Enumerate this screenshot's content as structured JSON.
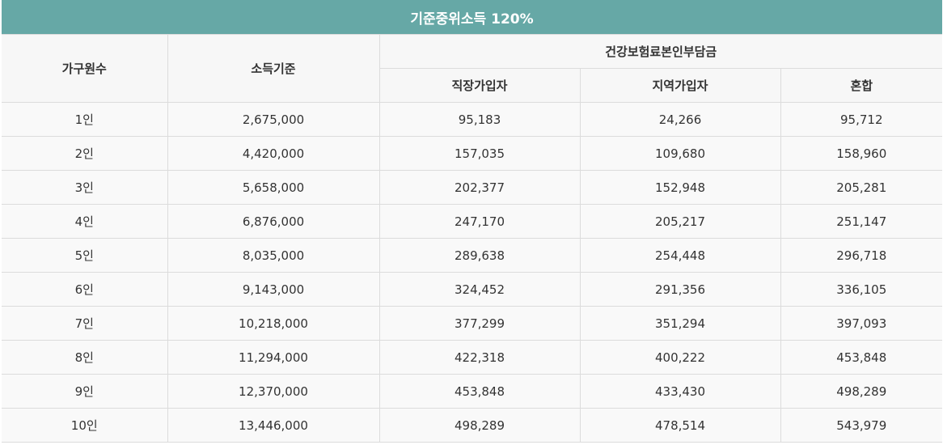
{
  "title": "기준중위소득 120%",
  "headers": {
    "household": "가구원수",
    "income": "소득기준",
    "premium_group": "건강보험료본인부담금",
    "employee": "직장가입자",
    "regional": "지역가입자",
    "mixed": "혼합"
  },
  "rows": [
    {
      "household": "1인",
      "income": "2,675,000",
      "employee": "95,183",
      "regional": "24,266",
      "mixed": "95,712"
    },
    {
      "household": "2인",
      "income": "4,420,000",
      "employee": "157,035",
      "regional": "109,680",
      "mixed": "158,960"
    },
    {
      "household": "3인",
      "income": "5,658,000",
      "employee": "202,377",
      "regional": "152,948",
      "mixed": "205,281"
    },
    {
      "household": "4인",
      "income": "6,876,000",
      "employee": "247,170",
      "regional": "205,217",
      "mixed": "251,147"
    },
    {
      "household": "5인",
      "income": "8,035,000",
      "employee": "289,638",
      "regional": "254,448",
      "mixed": "296,718"
    },
    {
      "household": "6인",
      "income": "9,143,000",
      "employee": "324,452",
      "regional": "291,356",
      "mixed": "336,105"
    },
    {
      "household": "7인",
      "income": "10,218,000",
      "employee": "377,299",
      "regional": "351,294",
      "mixed": "397,093"
    },
    {
      "household": "8인",
      "income": "11,294,000",
      "employee": "422,318",
      "regional": "400,222",
      "mixed": "453,848"
    },
    {
      "household": "9인",
      "income": "12,370,000",
      "employee": "453,848",
      "regional": "433,430",
      "mixed": "498,289"
    },
    {
      "household": "10인",
      "income": "13,446,000",
      "employee": "498,289",
      "regional": "478,514",
      "mixed": "543,979"
    }
  ]
}
